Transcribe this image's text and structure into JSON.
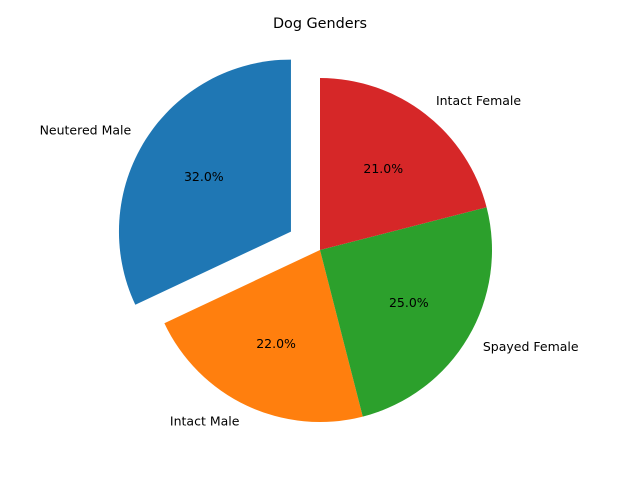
{
  "chart_data": {
    "type": "pie",
    "title": "Dog Genders",
    "labels": [
      "Neutered Male",
      "Intact Male",
      "Spayed Female",
      "Intact Female"
    ],
    "values": [
      32,
      22,
      25,
      21
    ],
    "percent_labels": [
      "32.0%",
      "22.0%",
      "25.0%",
      "21.0%"
    ],
    "colors": [
      "#1f77b4",
      "#ff7f0e",
      "#2ca02c",
      "#d62728"
    ],
    "exploded": [
      "Neutered Male"
    ],
    "start_angle_deg": 90,
    "direction": "counterclockwise"
  }
}
